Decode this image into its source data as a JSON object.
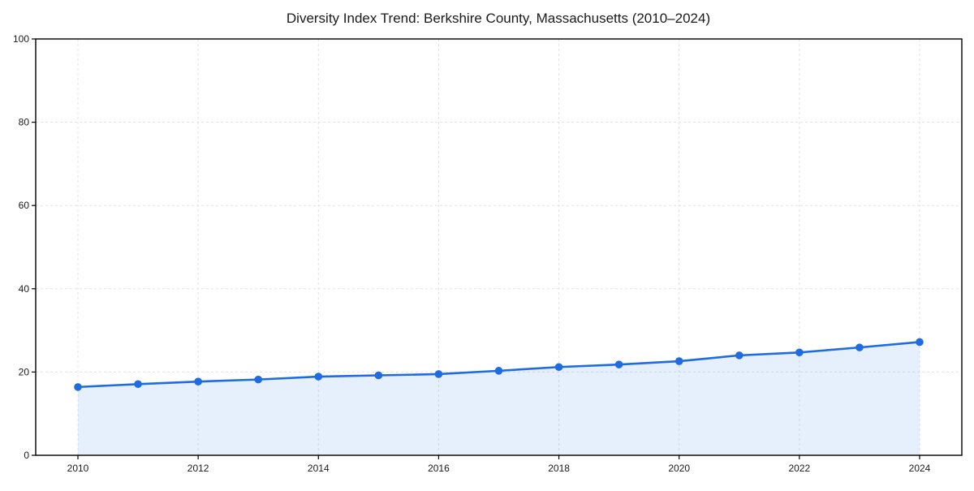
{
  "header": {
    "title": "Diversity Index Trend: Berkshire County, Massachusetts (2010–2024)"
  },
  "chart_data": {
    "type": "area",
    "title": "Diversity Index Trend: Berkshire County, Massachusetts (2010–2024)",
    "series_name": "Diversity Index",
    "x": [
      2010,
      2011,
      2012,
      2013,
      2014,
      2015,
      2016,
      2017,
      2018,
      2019,
      2020,
      2021,
      2022,
      2023,
      2024
    ],
    "values": [
      16.4,
      17.1,
      17.7,
      18.2,
      18.9,
      19.2,
      19.5,
      20.3,
      21.2,
      21.8,
      22.6,
      24.0,
      24.7,
      25.9,
      27.2
    ],
    "xlabel": "",
    "ylabel": "",
    "xlim": [
      2010,
      2024
    ],
    "ylim": [
      0,
      100
    ],
    "xticks": [
      2010,
      2012,
      2014,
      2016,
      2018,
      2020,
      2022,
      2024
    ],
    "yticks": [
      0,
      20,
      40,
      60,
      80,
      100
    ],
    "grid": true,
    "grid_style": "dashed",
    "legend": "none",
    "marker": "circle",
    "colors": {
      "line": "#1f6be0",
      "marker": "#1f6be0",
      "fill": "rgba(31,107,224,0.11)",
      "gridline": "#e2e2e2",
      "axis": "#000000",
      "text": "#1a1a1a",
      "background": "#ffffff"
    }
  }
}
